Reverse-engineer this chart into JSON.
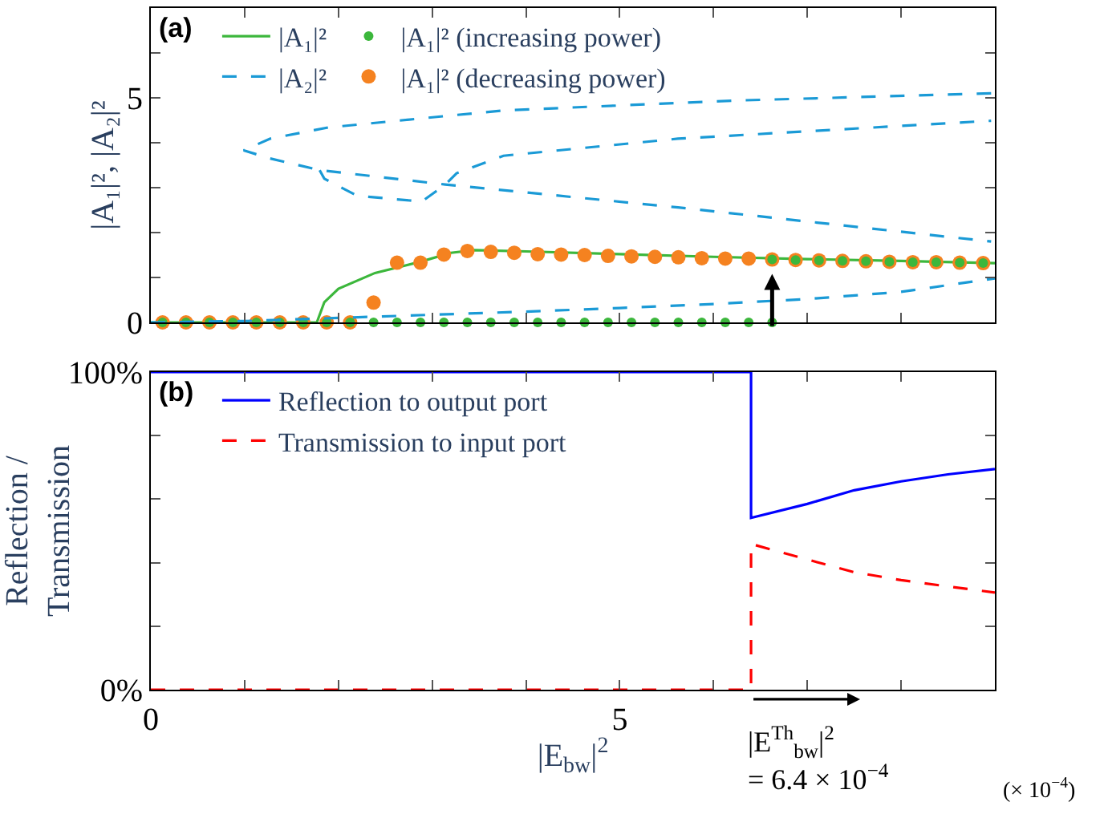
{
  "chart_data": [
    {
      "type": "line",
      "ylabel": "|A₁|², |A₂|²",
      "xlim": [
        0,
        9
      ],
      "xticks": [
        0,
        {
          "value": 1,
          "label": null
        },
        {
          "value": 2,
          "label": null
        },
        {
          "value": 3,
          "label": null
        },
        {
          "value": 4,
          "label": null
        },
        5,
        {
          "value": 6,
          "label": null
        },
        {
          "value": 7,
          "label": null
        },
        {
          "value": 8,
          "label": null
        },
        {
          "value": 9,
          "label": null
        }
      ],
      "ylim": [
        0,
        7
      ],
      "yticks": [
        0,
        {
          "value": 1,
          "label": null
        },
        {
          "value": 2,
          "label": null
        },
        {
          "value": 3,
          "label": null
        },
        {
          "value": 4,
          "label": null
        },
        5,
        {
          "value": 6,
          "label": null
        }
      ],
      "tick_labels": "y",
      "legend": "top left",
      "annotations": [
        "(a)"
      ],
      "series": [
        {
          "name": "|A₁|²",
          "type": "line",
          "color": "#3cb73c",
          "line_style": "solid",
          "marker": "none",
          "x": [
            0,
            1.77,
            1.85,
            2.0,
            2.39,
            2.89,
            3.2,
            3.45,
            4,
            5,
            6,
            7,
            8,
            9
          ],
          "values": [
            0,
            0,
            0.45,
            0.75,
            1.1,
            1.36,
            1.55,
            1.61,
            1.58,
            1.52,
            1.46,
            1.41,
            1.37,
            1.32
          ]
        },
        {
          "name": "|A₁|² (increasing power)",
          "type": "scatter",
          "color": "#3cb73c",
          "marker": "circle",
          "x": [
            0.125,
            0.375,
            0.625,
            0.875,
            1.125,
            1.375,
            1.625,
            1.875,
            2.125,
            2.375,
            2.625,
            2.875,
            3.125,
            3.375,
            3.625,
            3.875,
            4.125,
            4.375,
            4.625,
            4.875,
            5.125,
            5.375,
            5.625,
            5.875,
            6.125,
            6.375,
            6.625,
            6.625,
            6.875,
            7.125,
            7.375,
            7.625,
            7.875,
            8.125,
            8.375,
            8.625,
            8.875
          ],
          "values": [
            0,
            0,
            0,
            0,
            0,
            0,
            0,
            0,
            0,
            0,
            0,
            0,
            0,
            0,
            0,
            0,
            0,
            0,
            0,
            0,
            0,
            0,
            0,
            0,
            0,
            0,
            0,
            1.4,
            1.39,
            1.38,
            1.37,
            1.36,
            1.35,
            1.34,
            1.34,
            1.33,
            1.32
          ]
        },
        {
          "name": "|A₂|²",
          "type": "line",
          "color": "#1a9ad6",
          "line_style": "dashed",
          "marker": "none",
          "x": [
            0,
            1,
            2,
            3,
            4,
            5,
            6,
            7,
            8,
            9,
            null,
            8.96,
            6.24,
            3.76,
            1.89,
            1.27,
            0.99,
            1.27,
            1.8,
            3.14,
            5.62,
            8.96,
            null,
            1.8,
            1.85,
            2.2,
            2.89,
            3.14,
            3.26,
            3.76,
            5.62,
            8.96
          ],
          "values": [
            0,
            0.03,
            0.1,
            0.17,
            0.24,
            0.32,
            0.41,
            0.52,
            0.68,
            0.98,
            null,
            5.1,
            4.94,
            4.72,
            4.34,
            4.09,
            3.83,
            3.65,
            3.39,
            3.07,
            2.56,
            1.8,
            null,
            3.39,
            3.2,
            2.82,
            2.69,
            3.07,
            3.32,
            3.71,
            4.09,
            4.49
          ]
        },
        {
          "name": "|A₁|² (decreasing power)",
          "type": "scatter",
          "color": "#f58220",
          "marker": "circle",
          "x": [
            0.125,
            0.375,
            0.625,
            0.875,
            1.125,
            1.375,
            1.625,
            1.875,
            2.125,
            2.375,
            2.625,
            2.875,
            3.125,
            3.375,
            3.625,
            3.875,
            4.125,
            4.375,
            4.625,
            4.875,
            5.125,
            5.375,
            5.625,
            5.875,
            6.125,
            6.375,
            6.625,
            6.875,
            7.125,
            7.375,
            7.625,
            7.875,
            8.125,
            8.375,
            8.625,
            8.875
          ],
          "values": [
            0,
            0,
            0,
            0,
            0,
            0,
            0,
            0,
            0,
            0.44,
            1.33,
            1.33,
            1.51,
            1.59,
            1.57,
            1.55,
            1.52,
            1.51,
            1.5,
            1.48,
            1.47,
            1.46,
            1.45,
            1.43,
            1.42,
            1.42,
            1.4,
            1.39,
            1.38,
            1.37,
            1.36,
            1.35,
            1.34,
            1.34,
            1.33,
            1.32
          ]
        }
      ]
    },
    {
      "type": "line",
      "ylabel": "Reflection /\nTransmission",
      "xlabel": "|E$_{bw}$|$^{2}$",
      "xlim": [
        0,
        9
      ],
      "xticks": [
        0,
        {
          "value": 1,
          "label": null
        },
        {
          "value": 2,
          "label": null
        },
        {
          "value": 3,
          "label": null
        },
        {
          "value": 4,
          "label": null
        },
        5,
        {
          "value": 6,
          "label": null
        },
        {
          "value": 7,
          "label": null
        },
        {
          "value": 8,
          "label": null
        },
        {
          "value": 9,
          "label": null
        }
      ],
      "ylim": [
        0,
        100
      ],
      "yticks": [
        {
          "value": 0,
          "label": "0%"
        },
        {
          "value": 20,
          "label": null
        },
        {
          "value": 40,
          "label": null
        },
        {
          "value": 60,
          "label": null
        },
        {
          "value": 80,
          "label": null
        },
        {
          "value": 100,
          "label": "100%"
        }
      ],
      "legend": "top left",
      "annotations": [
        "(b)",
        "|E$^{Th}$$_{bw}$|$^{2}$\n= 6.4 × 10$^{−4}$",
        "(× 10$^{−4}$)"
      ],
      "series": [
        {
          "name": "Reflection to output port",
          "color": "#0000ff",
          "line_style": "solid",
          "x": [
            0,
            6.4,
            6.4,
            7,
            7.5,
            8,
            8.5,
            9
          ],
          "values": [
            100,
            100,
            54.1,
            58.5,
            62.8,
            65.6,
            67.8,
            69.5
          ]
        },
        {
          "name": "Transmission to input port",
          "color": "#ff0000",
          "line_style": "dashed",
          "x": [
            0,
            6.4,
            6.4,
            7,
            7.5,
            8,
            8.5,
            9
          ],
          "values": [
            0,
            0,
            45.9,
            41,
            37,
            34.5,
            32.5,
            30.6
          ]
        }
      ]
    }
  ]
}
